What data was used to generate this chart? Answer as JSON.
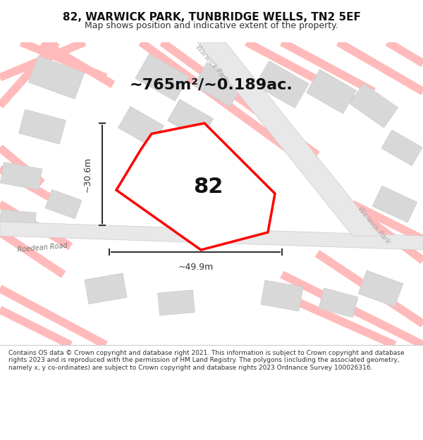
{
  "title": "82, WARWICK PARK, TUNBRIDGE WELLS, TN2 5EF",
  "subtitle": "Map shows position and indicative extent of the property.",
  "area_text": "~765m²/~0.189ac.",
  "label_82": "82",
  "dim_vertical": "~30.6m",
  "dim_horizontal": "~49.9m",
  "road_label_roedean": "Roedean Road",
  "road_label_warwick1": "Warwick Park",
  "road_label_warwick2": "Warwick Park",
  "road_label_roedean2": "Roedean Road",
  "footer_text": "Contains OS data © Crown copyright and database right 2021. This information is subject to Crown copyright and database rights 2023 and is reproduced with the permission of HM Land Registry. The polygons (including the associated geometry, namely x, y co-ordinates) are subject to Crown copyright and database rights 2023 Ordnance Survey 100026316.",
  "bg_color": "#f5f0ee",
  "map_bg": "#f5f0ee",
  "property_fill": "#ffffff",
  "property_edge": "#ff0000",
  "footer_bg": "#ffffff",
  "road_color": "#ffffff",
  "road_outline": "#cccccc",
  "building_fill": "#d8d8d8",
  "building_edge": "#cccccc",
  "dim_color": "#333333",
  "faint_road_color": "#ffbbbb",
  "faint_road_outline": "#ff9999"
}
